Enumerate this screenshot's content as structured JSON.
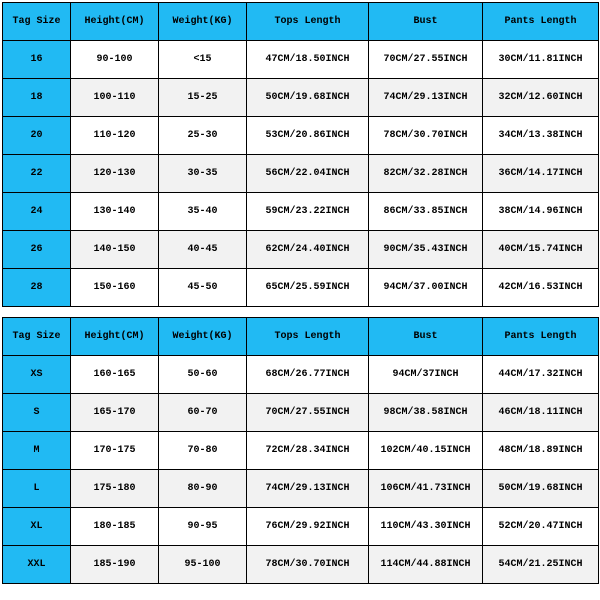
{
  "colors": {
    "header_bg": "#21baf3",
    "row_odd_bg": "#ffffff",
    "row_even_bg": "#f2f2f2",
    "firstcol_bg": "#21baf3",
    "border": "#000000",
    "text": "#000000"
  },
  "columns": [
    "Tag Size",
    "Height(CM)",
    "Weight(KG)",
    "Tops Length",
    "Bust",
    "Pants Length"
  ],
  "table1": {
    "rows": [
      [
        "16",
        "90-100",
        "<15",
        "47CM/18.50INCH",
        "70CM/27.55INCH",
        "30CM/11.81INCH"
      ],
      [
        "18",
        "100-110",
        "15-25",
        "50CM/19.68INCH",
        "74CM/29.13INCH",
        "32CM/12.60INCH"
      ],
      [
        "20",
        "110-120",
        "25-30",
        "53CM/20.86INCH",
        "78CM/30.70INCH",
        "34CM/13.38INCH"
      ],
      [
        "22",
        "120-130",
        "30-35",
        "56CM/22.04INCH",
        "82CM/32.28INCH",
        "36CM/14.17INCH"
      ],
      [
        "24",
        "130-140",
        "35-40",
        "59CM/23.22INCH",
        "86CM/33.85INCH",
        "38CM/14.96INCH"
      ],
      [
        "26",
        "140-150",
        "40-45",
        "62CM/24.40INCH",
        "90CM/35.43INCH",
        "40CM/15.74INCH"
      ],
      [
        "28",
        "150-160",
        "45-50",
        "65CM/25.59INCH",
        "94CM/37.00INCH",
        "42CM/16.53INCH"
      ]
    ]
  },
  "table2": {
    "rows": [
      [
        "XS",
        "160-165",
        "50-60",
        "68CM/26.77INCH",
        "94CM/37INCH",
        "44CM/17.32INCH"
      ],
      [
        "S",
        "165-170",
        "60-70",
        "70CM/27.55INCH",
        "98CM/38.58INCH",
        "46CM/18.11INCH"
      ],
      [
        "M",
        "170-175",
        "70-80",
        "72CM/28.34INCH",
        "102CM/40.15INCH",
        "48CM/18.89INCH"
      ],
      [
        "L",
        "175-180",
        "80-90",
        "74CM/29.13INCH",
        "106CM/41.73INCH",
        "50CM/19.68INCH"
      ],
      [
        "XL",
        "180-185",
        "90-95",
        "76CM/29.92INCH",
        "110CM/43.30INCH",
        "52CM/20.47INCH"
      ],
      [
        "XXL",
        "185-190",
        "95-100",
        "78CM/30.70INCH",
        "114CM/44.88INCH",
        "54CM/21.25INCH"
      ]
    ]
  }
}
